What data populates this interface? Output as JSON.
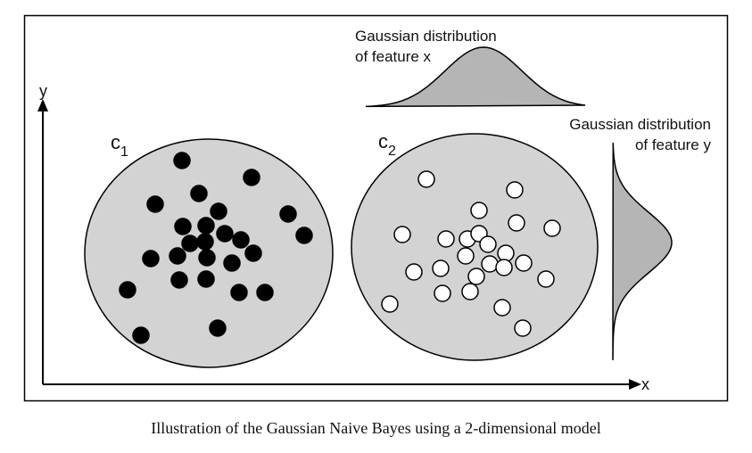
{
  "labels": {
    "y_axis": "y",
    "x_axis": "x",
    "class1": {
      "letter": "c",
      "sub": "1"
    },
    "class2": {
      "letter": "c",
      "sub": "2"
    },
    "gauss_x": [
      "Gaussian distribution",
      "of feature x"
    ],
    "gauss_y": [
      "Gaussian distribution",
      "of feature y"
    ]
  },
  "caption": "Illustration of the Gaussian Naive Bayes using a 2-dimensional model",
  "colors": {
    "cluster_fill": "#d3d3d3",
    "curve_fill": "#b5b5b5",
    "class1_point": "#000000",
    "class2_point": "#ffffff",
    "stroke": "#000000"
  }
}
